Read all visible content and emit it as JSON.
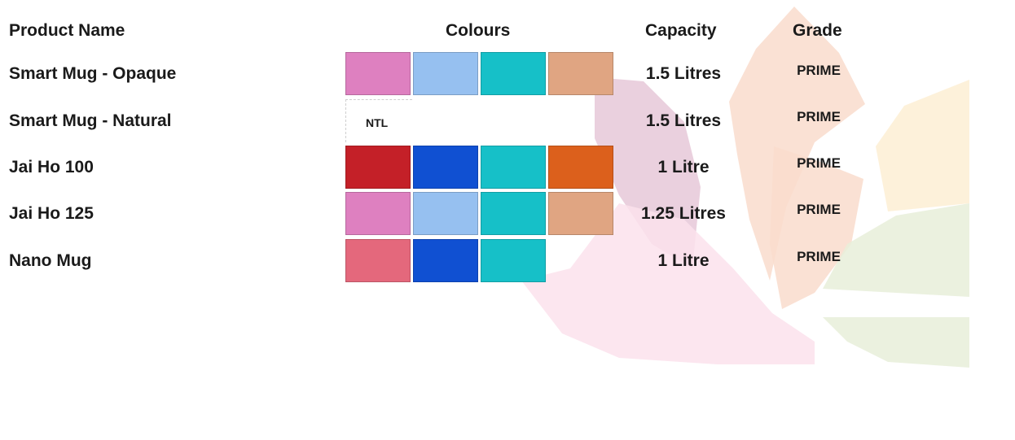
{
  "headers": {
    "product_name": "Product Name",
    "colours": "Colours",
    "capacity": "Capacity",
    "grade": "Grade"
  },
  "rows": [
    {
      "name": "Smart Mug - Opaque",
      "capacity": "1.5 Litres",
      "grade": "PRIME",
      "colours": [
        "#de80c0",
        "#96c0f0",
        "#16c0c8",
        "#e0a582"
      ]
    },
    {
      "name": "Smart Mug - Natural",
      "capacity": "1.5 Litres",
      "grade": "PRIME",
      "colours": [],
      "colour_label": "NTL"
    },
    {
      "name": "Jai Ho 100",
      "capacity": "1 Litre",
      "grade": "PRIME",
      "colours": [
        "#c42028",
        "#1050d2",
        "#16c0c8",
        "#dc601c"
      ]
    },
    {
      "name": "Jai Ho 125",
      "capacity": "1.25 Litres",
      "grade": "PRIME",
      "colours": [
        "#de80c0",
        "#96c0f0",
        "#16c0c8",
        "#e0a582"
      ]
    },
    {
      "name": "Nano Mug",
      "capacity": "1 Litre",
      "grade": "PRIME",
      "colours": [
        "#e4687c",
        "#1050d2",
        "#16c0c8"
      ]
    }
  ],
  "background": {
    "petal_colors": [
      "#e6c8d8",
      "#f9dccd",
      "#fdefd3",
      "#e8efd9",
      "#fbe2ec"
    ]
  }
}
